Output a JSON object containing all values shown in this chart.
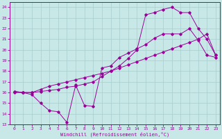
{
  "xlabel": "Windchill (Refroidissement éolien,°C)",
  "xlim": [
    -0.5,
    23.5
  ],
  "ylim": [
    13,
    24.5
  ],
  "yticks": [
    13,
    14,
    15,
    16,
    17,
    18,
    19,
    20,
    21,
    22,
    23,
    24
  ],
  "xticks": [
    0,
    1,
    2,
    3,
    4,
    5,
    6,
    7,
    8,
    9,
    10,
    11,
    12,
    13,
    14,
    15,
    16,
    17,
    18,
    19,
    20,
    21,
    22,
    23
  ],
  "bg_color": "#c8e8e8",
  "line_color": "#990099",
  "grid_color": "#a8cece",
  "series1_x": [
    0,
    1,
    2,
    3,
    4,
    5,
    6,
    7,
    8,
    9,
    10,
    11,
    12,
    13,
    14,
    15,
    16,
    17,
    18,
    19,
    20,
    21,
    22,
    23
  ],
  "series1_y": [
    16.1,
    16.0,
    15.8,
    15.0,
    14.3,
    14.2,
    13.2,
    16.7,
    14.8,
    14.7,
    18.3,
    18.5,
    19.3,
    19.7,
    20.1,
    20.5,
    21.1,
    21.5,
    21.5,
    21.5,
    22.0,
    20.9,
    19.5,
    19.3
  ],
  "series2_x": [
    0,
    1,
    2,
    3,
    4,
    5,
    6,
    7,
    8,
    9,
    10,
    11,
    12,
    13,
    14,
    15,
    16,
    17,
    18,
    19,
    20,
    21,
    22,
    23
  ],
  "series2_y": [
    16.0,
    16.0,
    16.0,
    16.3,
    16.6,
    16.8,
    17.0,
    17.2,
    17.4,
    17.6,
    17.8,
    18.0,
    18.3,
    18.6,
    18.9,
    19.2,
    19.5,
    19.8,
    20.1,
    20.4,
    20.7,
    21.0,
    21.5,
    19.5
  ],
  "series3_x": [
    0,
    1,
    2,
    3,
    4,
    5,
    6,
    7,
    8,
    9,
    10,
    11,
    12,
    13,
    14,
    15,
    16,
    17,
    18,
    19,
    20,
    21,
    22,
    23
  ],
  "series3_y": [
    16.1,
    16.0,
    16.0,
    16.1,
    16.2,
    16.3,
    16.5,
    16.6,
    16.8,
    17.0,
    17.5,
    18.0,
    18.5,
    19.2,
    20.0,
    23.3,
    23.5,
    23.8,
    24.0,
    23.5,
    23.5,
    22.0,
    21.0,
    19.5
  ]
}
